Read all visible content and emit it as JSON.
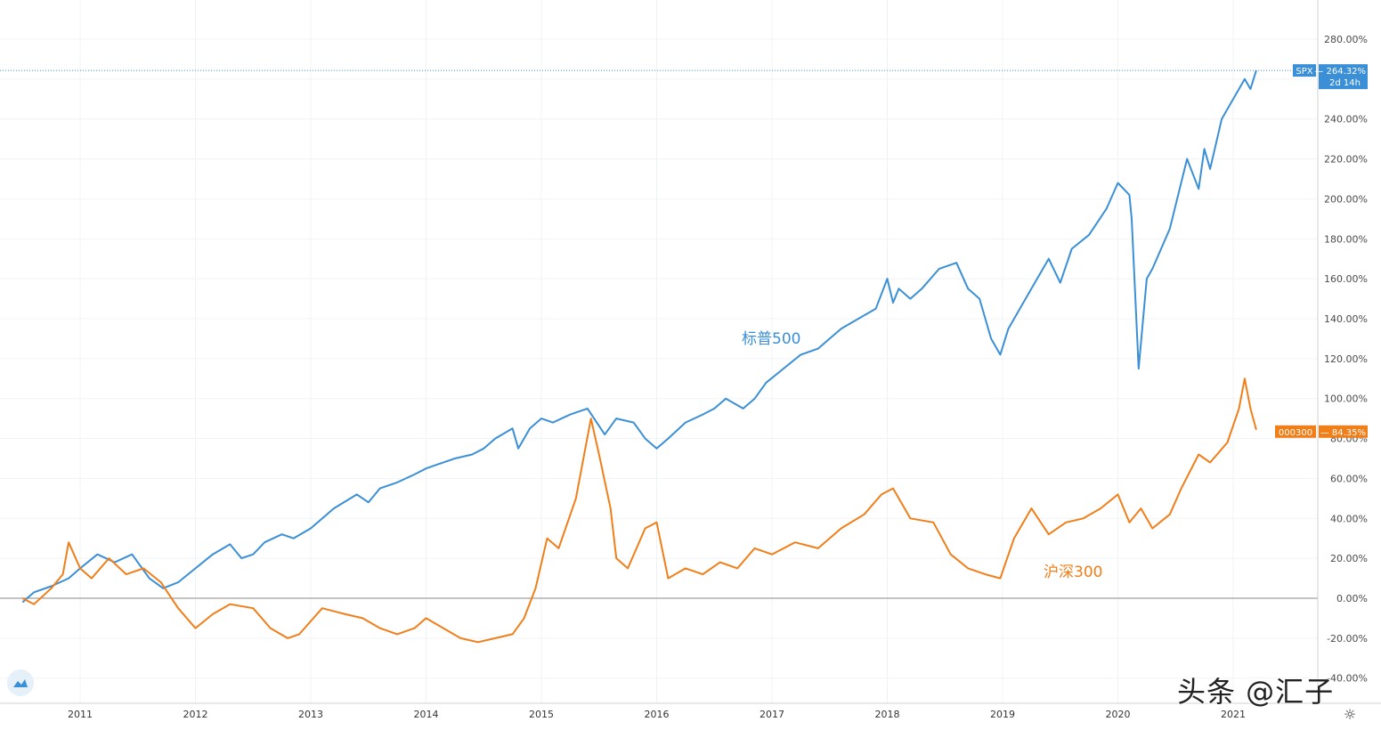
{
  "chart_data": {
    "type": "line",
    "x_range": [
      2010.5,
      2021.25
    ],
    "y_unit": "%",
    "ylim": [
      -25,
      290
    ],
    "y_ticks": [
      280,
      260,
      240,
      220,
      200,
      180,
      160,
      140,
      120,
      100,
      80,
      60,
      40,
      20,
      0,
      -20,
      -40
    ],
    "y_tick_labels": [
      "280.00%",
      "",
      "240.00%",
      "220.00%",
      "200.00%",
      "180.00%",
      "160.00%",
      "140.00%",
      "120.00%",
      "100.00%",
      "80.00%",
      "60.00%",
      "40.00%",
      "20.00%",
      "0.00%",
      "-20.00%",
      "-40.00%"
    ],
    "x_ticks": [
      2011,
      2012,
      2013,
      2014,
      2015,
      2016,
      2017,
      2018,
      2019,
      2020,
      2021
    ],
    "x_tick_labels": [
      "2011",
      "2012",
      "2013",
      "2014",
      "2015",
      "2016",
      "2017",
      "2018",
      "2019",
      "2020",
      "2021"
    ],
    "zero_line": 0,
    "grid": true,
    "series": [
      {
        "name": "标普500",
        "color": "#3a8fd6",
        "tag": "SPX",
        "last_value_label": "264.32%",
        "tag_sub": "2d 14h",
        "x": [
          2010.5,
          2010.6,
          2010.75,
          2010.9,
          2011.0,
          2011.15,
          2011.3,
          2011.45,
          2011.6,
          2011.72,
          2011.85,
          2012.0,
          2012.15,
          2012.3,
          2012.4,
          2012.5,
          2012.6,
          2012.75,
          2012.85,
          2013.0,
          2013.2,
          2013.4,
          2013.5,
          2013.6,
          2013.75,
          2013.9,
          2014.0,
          2014.1,
          2014.25,
          2014.4,
          2014.5,
          2014.6,
          2014.75,
          2014.8,
          2014.9,
          2015.0,
          2015.1,
          2015.25,
          2015.4,
          2015.55,
          2015.65,
          2015.8,
          2015.9,
          2016.0,
          2016.1,
          2016.25,
          2016.4,
          2016.5,
          2016.6,
          2016.75,
          2016.85,
          2016.95,
          2017.1,
          2017.25,
          2017.4,
          2017.6,
          2017.75,
          2017.9,
          2018.0,
          2018.05,
          2018.1,
          2018.2,
          2018.3,
          2018.45,
          2018.6,
          2018.7,
          2018.8,
          2018.9,
          2018.98,
          2019.05,
          2019.15,
          2019.3,
          2019.4,
          2019.5,
          2019.6,
          2019.75,
          2019.9,
          2020.0,
          2020.1,
          2020.12,
          2020.18,
          2020.25,
          2020.3,
          2020.45,
          2020.6,
          2020.7,
          2020.75,
          2020.8,
          2020.9,
          2021.0,
          2021.05,
          2021.1,
          2021.15,
          2021.2
        ],
        "y": [
          -2,
          3,
          6,
          10,
          15,
          22,
          18,
          22,
          10,
          5,
          8,
          15,
          22,
          27,
          20,
          22,
          28,
          32,
          30,
          35,
          45,
          52,
          48,
          55,
          58,
          62,
          65,
          67,
          70,
          72,
          75,
          80,
          85,
          75,
          85,
          90,
          88,
          92,
          95,
          82,
          90,
          88,
          80,
          75,
          80,
          88,
          92,
          95,
          100,
          95,
          100,
          108,
          115,
          122,
          125,
          135,
          140,
          145,
          160,
          148,
          155,
          150,
          155,
          165,
          168,
          155,
          150,
          130,
          122,
          135,
          145,
          160,
          170,
          158,
          175,
          182,
          195,
          208,
          202,
          190,
          115,
          160,
          165,
          185,
          220,
          205,
          225,
          215,
          240,
          250,
          255,
          260,
          255,
          264.32
        ]
      },
      {
        "name": "沪深300",
        "color": "#f07e19",
        "tag": "000300",
        "last_value_label": "84.35%",
        "x": [
          2010.5,
          2010.6,
          2010.75,
          2010.85,
          2010.9,
          2011.0,
          2011.1,
          2011.25,
          2011.4,
          2011.55,
          2011.7,
          2011.85,
          2012.0,
          2012.15,
          2012.3,
          2012.5,
          2012.65,
          2012.8,
          2012.9,
          2013.1,
          2013.3,
          2013.45,
          2013.6,
          2013.75,
          2013.9,
          2014.0,
          2014.15,
          2014.3,
          2014.45,
          2014.6,
          2014.75,
          2014.85,
          2014.95,
          2015.05,
          2015.15,
          2015.3,
          2015.43,
          2015.5,
          2015.6,
          2015.65,
          2015.75,
          2015.9,
          2016.0,
          2016.1,
          2016.25,
          2016.4,
          2016.55,
          2016.7,
          2016.85,
          2017.0,
          2017.2,
          2017.4,
          2017.6,
          2017.8,
          2017.95,
          2018.05,
          2018.2,
          2018.4,
          2018.55,
          2018.7,
          2018.85,
          2018.98,
          2019.1,
          2019.25,
          2019.4,
          2019.55,
          2019.7,
          2019.85,
          2020.0,
          2020.1,
          2020.2,
          2020.3,
          2020.45,
          2020.55,
          2020.7,
          2020.8,
          2020.95,
          2021.05,
          2021.1,
          2021.15,
          2021.2
        ],
        "y": [
          0,
          -3,
          5,
          12,
          28,
          15,
          10,
          20,
          12,
          15,
          8,
          -5,
          -15,
          -8,
          -3,
          -5,
          -15,
          -20,
          -18,
          -5,
          -8,
          -10,
          -15,
          -18,
          -15,
          -10,
          -15,
          -20,
          -22,
          -20,
          -18,
          -10,
          5,
          30,
          25,
          50,
          90,
          72,
          45,
          20,
          15,
          35,
          38,
          10,
          15,
          12,
          18,
          15,
          25,
          22,
          28,
          25,
          35,
          42,
          52,
          55,
          40,
          38,
          22,
          15,
          12,
          10,
          30,
          45,
          32,
          38,
          40,
          45,
          52,
          38,
          45,
          35,
          42,
          55,
          72,
          68,
          78,
          95,
          110,
          95,
          84.35
        ]
      }
    ]
  },
  "watermark": "头条 @汇子"
}
